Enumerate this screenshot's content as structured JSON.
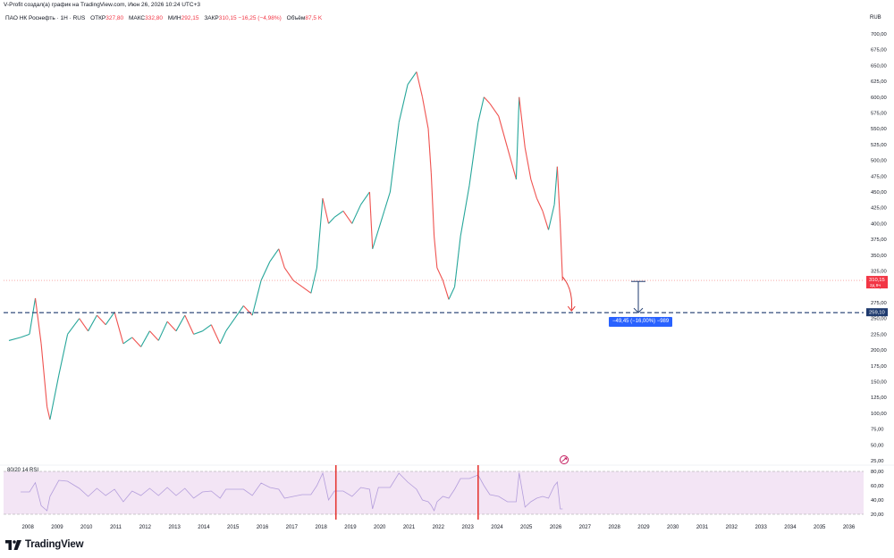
{
  "header": {
    "attribution": "V-Profit создал(а) график на TradingView.com, Июн 26, 2026 10:24 UTC+3",
    "symbol": "ПАО НК Роснефть · 1Н · RUS",
    "open_label": "ОТКР",
    "open_value": "327,80",
    "high_label": "МАКС",
    "high_value": "332,80",
    "low_label": "МИН",
    "low_value": "292,15",
    "close_label": "ЗАКР",
    "close_value": "310,15 −16,25 (−4,98%)",
    "volume_label": "Объём",
    "volume_value": "87,5 K"
  },
  "price_axis": {
    "currency": "RUB",
    "ticks": [
      "700,00",
      "675,00",
      "650,00",
      "625,00",
      "600,00",
      "575,00",
      "550,00",
      "525,00",
      "500,00",
      "475,00",
      "450,00",
      "425,00",
      "400,00",
      "375,00",
      "350,00",
      "325,00",
      "300,00",
      "275,00",
      "250,00",
      "225,00",
      "200,00",
      "175,00",
      "150,00",
      "125,00",
      "100,00",
      "75,00",
      "50,00",
      "25,00"
    ],
    "current_price_label": "310,15",
    "current_price_sub": "2д 9ч",
    "level_label": "259,10"
  },
  "rsi_axis": {
    "ticks": [
      "80,00",
      "60,00",
      "40,00",
      "20,00"
    ]
  },
  "rsi_label": "80/20 14 RSI",
  "time_axis": {
    "ticks": [
      "2008",
      "2009",
      "2010",
      "2011",
      "2012",
      "2013",
      "2014",
      "2015",
      "2016",
      "2017",
      "2018",
      "2019",
      "2020",
      "2021",
      "2022",
      "2023",
      "2024",
      "2025",
      "2026",
      "2027",
      "2028",
      "2029",
      "2030",
      "2031",
      "2032",
      "2033",
      "2034",
      "2035",
      "2036"
    ]
  },
  "measure_label": "−49,45 (−16,00%) −989",
  "logo_text": "TradingView",
  "colors": {
    "up": "#26a69a",
    "down": "#ef5350",
    "level_line": "#1e3a6e",
    "rsi_band": "#f3e5f5",
    "rsi_line": "#b39ddb",
    "marker": "#e53935",
    "measure": "#2962ff",
    "arrow": "#e53935"
  },
  "chart_data": {
    "type": "line",
    "title": "ПАО НК Роснефть · 1Н · RUS",
    "xlabel": "",
    "ylabel": "",
    "x_range": [
      "2007.6",
      "2036.9"
    ],
    "ylim": [
      25,
      710
    ],
    "series": [
      {
        "values_x": [
          2007.6,
          2008.0,
          2008.3,
          2008.5,
          2008.7,
          2008.9,
          2009.0,
          2009.3,
          2009.6,
          2010.0,
          2010.3,
          2010.6,
          2010.9,
          2011.2,
          2011.5,
          2011.8,
          2012.1,
          2012.4,
          2012.7,
          2013.0,
          2013.3,
          2013.6,
          2013.9,
          2014.2,
          2014.5,
          2014.8,
          2015.0,
          2015.3,
          2015.6,
          2015.9,
          2016.2,
          2016.5,
          2016.8,
          2017.0,
          2017.3,
          2017.6,
          2017.9,
          2018.1,
          2018.3,
          2018.5,
          2018.7,
          2019.0,
          2019.3,
          2019.6,
          2019.9,
          2020.0,
          2020.2,
          2020.4,
          2020.6,
          2020.9,
          2021.2,
          2021.5,
          2021.7,
          2021.9,
          2022.0,
          2022.1,
          2022.2,
          2022.4,
          2022.6,
          2022.8,
          2023.0,
          2023.3,
          2023.6,
          2023.8,
          2024.0,
          2024.3,
          2024.6,
          2024.9,
          2025.0,
          2025.2,
          2025.4,
          2025.6,
          2025.8,
          2026.0,
          2026.2,
          2026.3,
          2026.4,
          2026.48
        ],
        "values_y": [
          215,
          220,
          225,
          282,
          210,
          110,
          90,
          160,
          225,
          250,
          230,
          255,
          240,
          260,
          210,
          220,
          205,
          230,
          215,
          245,
          230,
          255,
          225,
          230,
          240,
          210,
          230,
          250,
          270,
          255,
          310,
          340,
          360,
          330,
          310,
          300,
          290,
          330,
          440,
          400,
          410,
          420,
          400,
          430,
          450,
          360,
          390,
          420,
          450,
          560,
          620,
          640,
          600,
          550,
          480,
          380,
          330,
          310,
          280,
          300,
          380,
          460,
          560,
          600,
          590,
          570,
          520,
          470,
          600,
          520,
          470,
          440,
          420,
          390,
          430,
          490,
          400,
          310
        ]
      }
    ],
    "level": 259.1,
    "last_price": 310.15,
    "rsi": {
      "upper": 80,
      "lower": 20,
      "ylim": [
        15,
        85
      ],
      "markers_x": [
        2018.75,
        2023.6
      ]
    }
  }
}
